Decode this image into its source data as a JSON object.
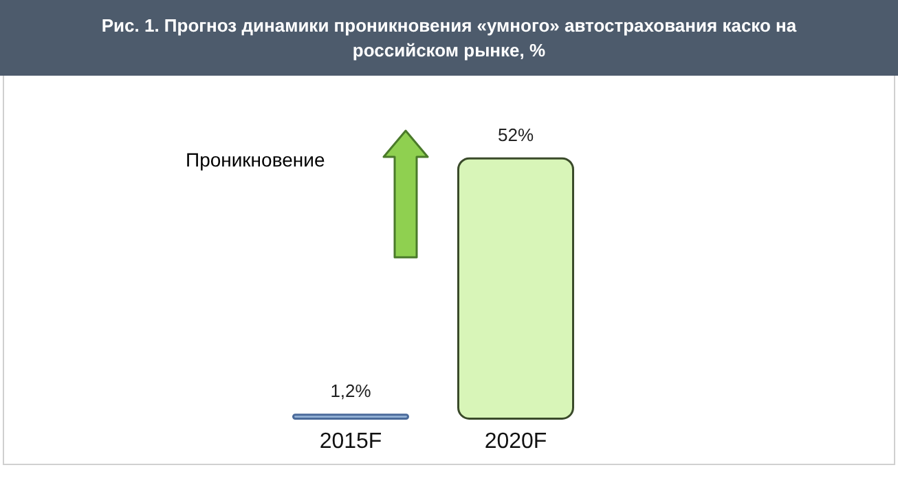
{
  "chart_data": {
    "type": "bar",
    "title": "Рис. 1. Прогноз динамики проникновения «умного» автострахования каско на российском рынке, %",
    "categories": [
      "2015F",
      "2020F"
    ],
    "values": [
      1.2,
      52
    ],
    "colors": [
      "#95b3d7",
      "#d8f5b8"
    ],
    "value_labels": [
      "1,2%",
      "52%"
    ],
    "annotations": [
      "Проникновение"
    ]
  }
}
